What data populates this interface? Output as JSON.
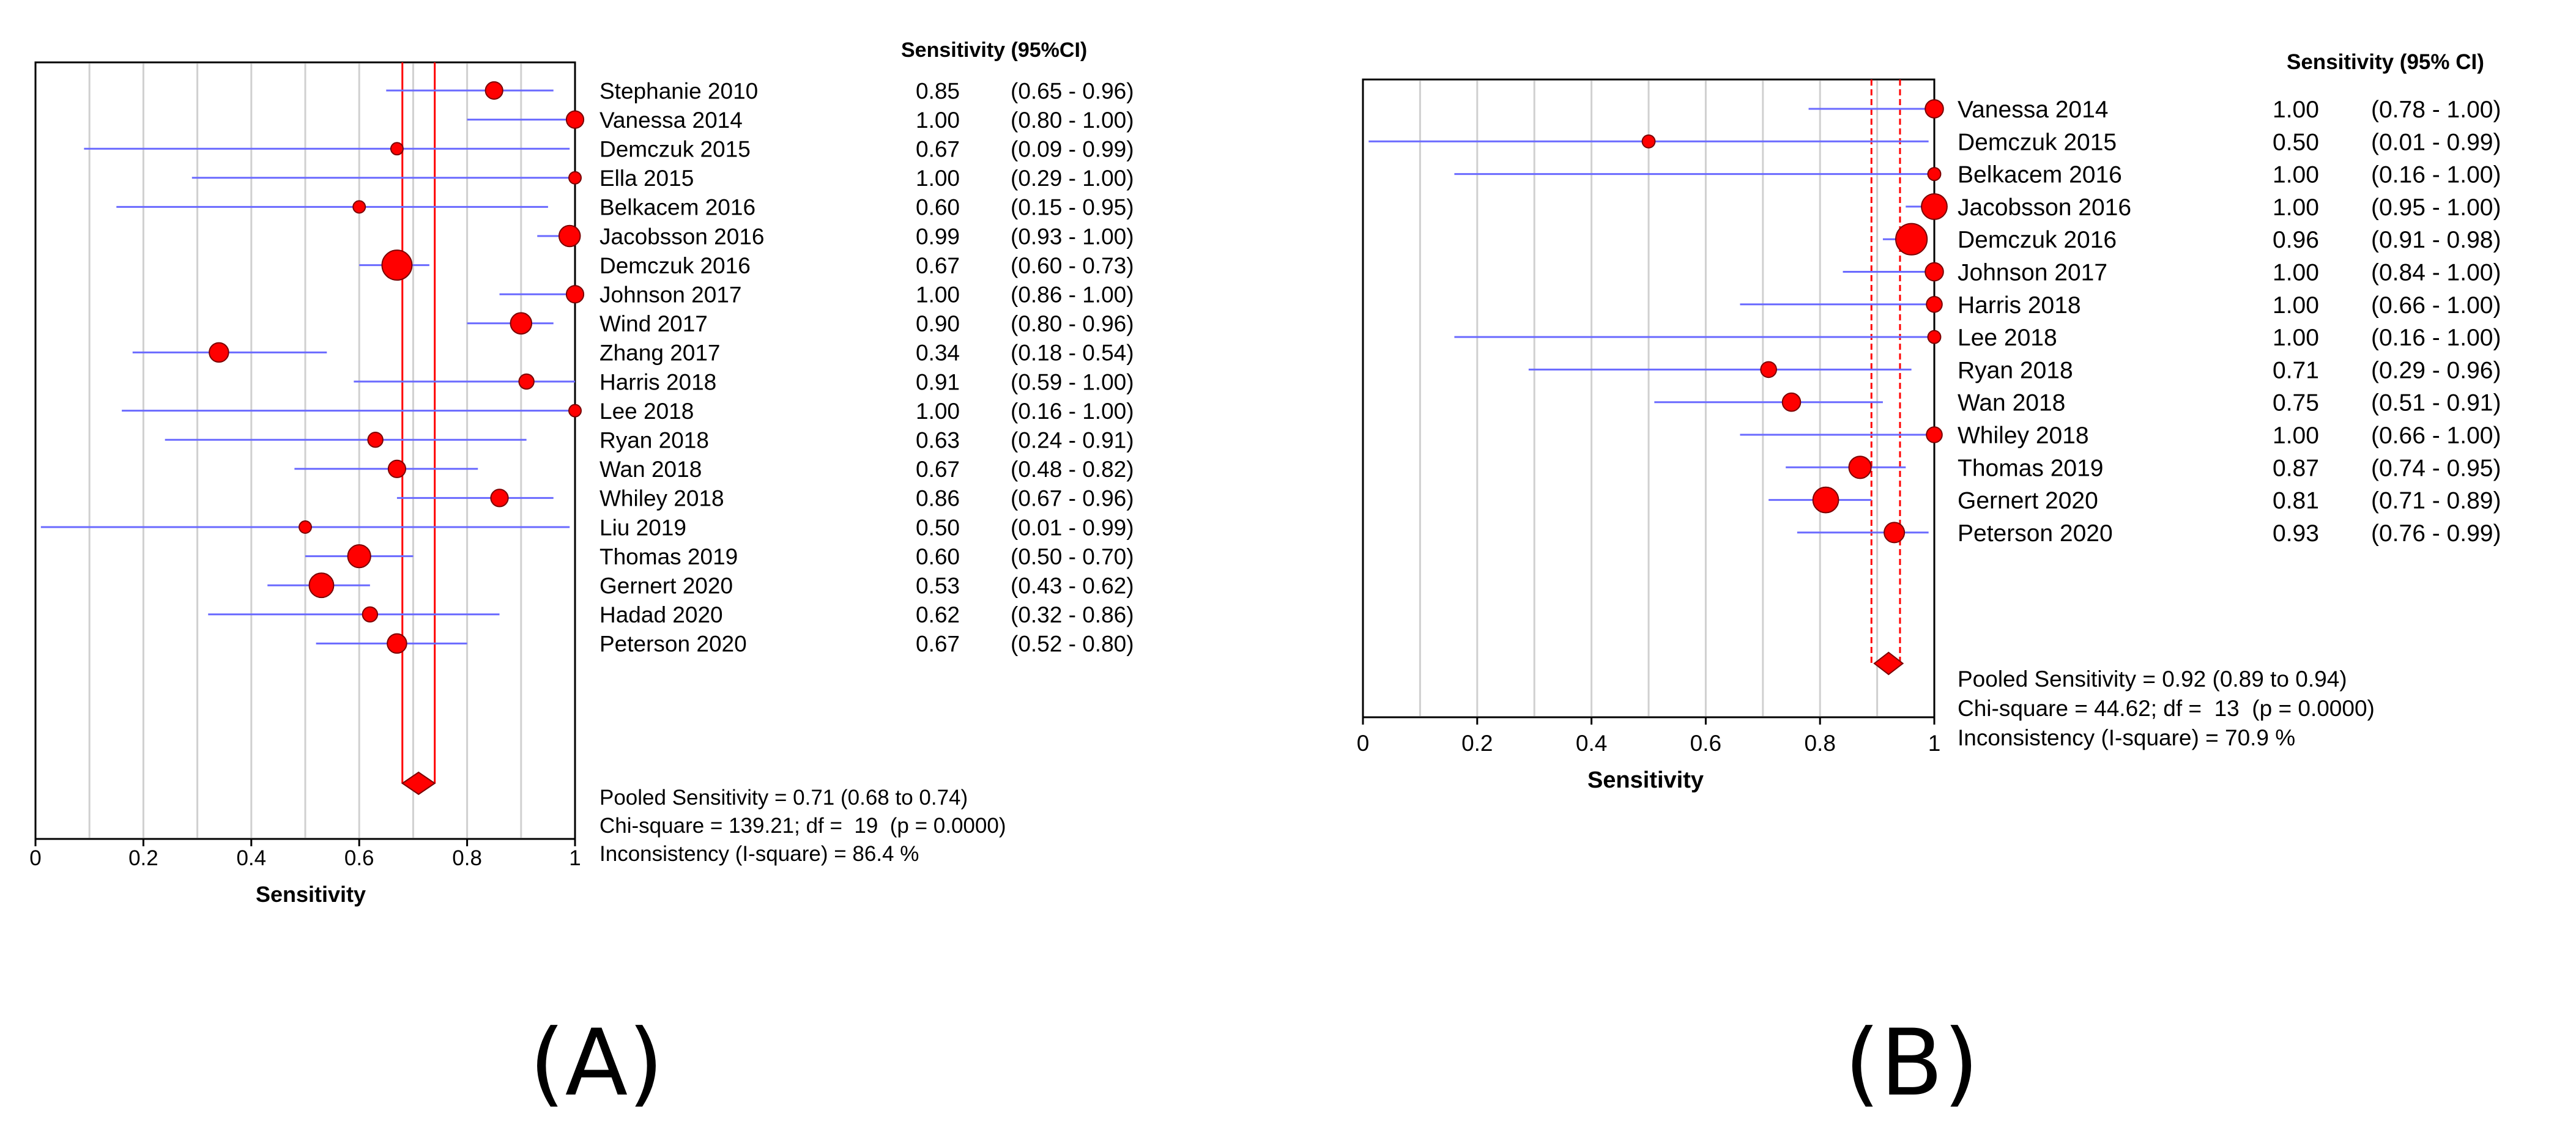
{
  "chart_data": [
    {
      "type": "forest",
      "panel_label": "(A)",
      "xlabel": "Sensitivity",
      "xlim": [
        0,
        1
      ],
      "x_ticks": [
        "0",
        "0.2",
        "0.4",
        "0.6",
        "0.8",
        "1"
      ],
      "column_header": "Sensitivity (95%CI)",
      "studies": [
        {
          "name": "Stephanie 2010",
          "estimate": 0.85,
          "lower": 0.65,
          "upper": 0.96,
          "value_text": "0.85",
          "ci_text": "(0.65 - 0.96)",
          "weight": 2
        },
        {
          "name": "Vanessa 2014",
          "estimate": 1.0,
          "lower": 0.8,
          "upper": 1.0,
          "value_text": "1.00",
          "ci_text": "(0.80 - 1.00)",
          "weight": 2
        },
        {
          "name": "Demczuk 2015",
          "estimate": 0.67,
          "lower": 0.09,
          "upper": 0.99,
          "value_text": "0.67",
          "ci_text": "(0.09 - 0.99)",
          "weight": 1
        },
        {
          "name": "Ella 2015",
          "estimate": 1.0,
          "lower": 0.29,
          "upper": 1.0,
          "value_text": "1.00",
          "ci_text": "(0.29 - 1.00)",
          "weight": 1
        },
        {
          "name": "Belkacem 2016",
          "estimate": 0.6,
          "lower": 0.15,
          "upper": 0.95,
          "value_text": "0.60",
          "ci_text": "(0.15 - 0.95)",
          "weight": 1
        },
        {
          "name": "Jacobsson 2016",
          "estimate": 0.99,
          "lower": 0.93,
          "upper": 1.0,
          "value_text": "0.99",
          "ci_text": "(0.93 - 1.00)",
          "weight": 3
        },
        {
          "name": "Demczuk 2016",
          "estimate": 0.67,
          "lower": 0.6,
          "upper": 0.73,
          "value_text": "0.67",
          "ci_text": "(0.60 - 0.73)",
          "weight": 6
        },
        {
          "name": "Johnson 2017",
          "estimate": 1.0,
          "lower": 0.86,
          "upper": 1.0,
          "value_text": "1.00",
          "ci_text": "(0.86 - 1.00)",
          "weight": 2
        },
        {
          "name": "Wind 2017",
          "estimate": 0.9,
          "lower": 0.8,
          "upper": 0.96,
          "value_text": "0.90",
          "ci_text": "(0.80 - 0.96)",
          "weight": 3
        },
        {
          "name": "Zhang 2017",
          "estimate": 0.34,
          "lower": 0.18,
          "upper": 0.54,
          "value_text": "0.34",
          "ci_text": "(0.18 - 0.54)",
          "weight": 2.5
        },
        {
          "name": "Harris 2018",
          "estimate": 0.91,
          "lower": 0.59,
          "upper": 1.0,
          "value_text": "0.91",
          "ci_text": "(0.59 - 1.00)",
          "weight": 1.5
        },
        {
          "name": "Lee 2018",
          "estimate": 1.0,
          "lower": 0.16,
          "upper": 1.0,
          "value_text": "1.00",
          "ci_text": "(0.16 - 1.00)",
          "weight": 1
        },
        {
          "name": "Ryan 2018",
          "estimate": 0.63,
          "lower": 0.24,
          "upper": 0.91,
          "value_text": "0.63",
          "ci_text": "(0.24 - 0.91)",
          "weight": 1.5
        },
        {
          "name": "Wan 2018",
          "estimate": 0.67,
          "lower": 0.48,
          "upper": 0.82,
          "value_text": "0.67",
          "ci_text": "(0.48 - 0.82)",
          "weight": 2
        },
        {
          "name": "Whiley 2018",
          "estimate": 0.86,
          "lower": 0.67,
          "upper": 0.96,
          "value_text": "0.86",
          "ci_text": "(0.67 - 0.96)",
          "weight": 2
        },
        {
          "name": "Liu 2019",
          "estimate": 0.5,
          "lower": 0.01,
          "upper": 0.99,
          "value_text": "0.50",
          "ci_text": "(0.01 - 0.99)",
          "weight": 1
        },
        {
          "name": "Thomas 2019",
          "estimate": 0.6,
          "lower": 0.5,
          "upper": 0.7,
          "value_text": "0.60",
          "ci_text": "(0.50 - 0.70)",
          "weight": 3.5
        },
        {
          "name": "Gernert 2020",
          "estimate": 0.53,
          "lower": 0.43,
          "upper": 0.62,
          "value_text": "0.53",
          "ci_text": "(0.43 - 0.62)",
          "weight": 4
        },
        {
          "name": "Hadad 2020",
          "estimate": 0.62,
          "lower": 0.32,
          "upper": 0.86,
          "value_text": "0.62",
          "ci_text": "(0.32 - 0.86)",
          "weight": 1.5
        },
        {
          "name": "Peterson 2020",
          "estimate": 0.67,
          "lower": 0.52,
          "upper": 0.8,
          "value_text": "0.67",
          "ci_text": "(0.52 - 0.80)",
          "weight": 2.5
        }
      ],
      "pooled": {
        "estimate": 0.71,
        "lower": 0.68,
        "upper": 0.74
      },
      "summary_lines": [
        "Pooled Sensitivity = 0.71 (0.68 to 0.74)",
        "Chi-square = 139.21; df =  19  (p = 0.0000)",
        "Inconsistency (I-square) = 86.4 %"
      ],
      "grid": true,
      "colors": {
        "marker": "#ff0000",
        "ci_line": "#6a6aff",
        "pooled_line": "#ff0000",
        "grid": "#d0d0d0"
      }
    },
    {
      "type": "forest",
      "panel_label": "(B)",
      "xlabel": "Sensitivity",
      "xlim": [
        0,
        1
      ],
      "x_ticks": [
        "0",
        "0.2",
        "0.4",
        "0.6",
        "0.8",
        "1"
      ],
      "column_header": "Sensitivity (95% CI)",
      "studies": [
        {
          "name": "Vanessa 2014",
          "estimate": 1.0,
          "lower": 0.78,
          "upper": 1.0,
          "value_text": "1.00",
          "ci_text": "(0.78 - 1.00)",
          "weight": 2
        },
        {
          "name": "Demczuk 2015",
          "estimate": 0.5,
          "lower": 0.01,
          "upper": 0.99,
          "value_text": "0.50",
          "ci_text": "(0.01 - 0.99)",
          "weight": 1
        },
        {
          "name": "Belkacem 2016",
          "estimate": 1.0,
          "lower": 0.16,
          "upper": 1.0,
          "value_text": "1.00",
          "ci_text": "(0.16 - 1.00)",
          "weight": 1
        },
        {
          "name": "Jacobsson 2016",
          "estimate": 1.0,
          "lower": 0.95,
          "upper": 1.0,
          "value_text": "1.00",
          "ci_text": "(0.95 - 1.00)",
          "weight": 4
        },
        {
          "name": "Demczuk 2016",
          "estimate": 0.96,
          "lower": 0.91,
          "upper": 0.98,
          "value_text": "0.96",
          "ci_text": "(0.91 - 0.98)",
          "weight": 6
        },
        {
          "name": "Johnson 2017",
          "estimate": 1.0,
          "lower": 0.84,
          "upper": 1.0,
          "value_text": "1.00",
          "ci_text": "(0.84 - 1.00)",
          "weight": 2
        },
        {
          "name": "Harris 2018",
          "estimate": 1.0,
          "lower": 0.66,
          "upper": 1.0,
          "value_text": "1.00",
          "ci_text": "(0.66 - 1.00)",
          "weight": 1.5
        },
        {
          "name": "Lee 2018",
          "estimate": 1.0,
          "lower": 0.16,
          "upper": 1.0,
          "value_text": "1.00",
          "ci_text": "(0.16 - 1.00)",
          "weight": 1
        },
        {
          "name": "Ryan 2018",
          "estimate": 0.71,
          "lower": 0.29,
          "upper": 0.96,
          "value_text": "0.71",
          "ci_text": "(0.29 - 0.96)",
          "weight": 1.5
        },
        {
          "name": "Wan 2018",
          "estimate": 0.75,
          "lower": 0.51,
          "upper": 0.91,
          "value_text": "0.75",
          "ci_text": "(0.51 - 0.91)",
          "weight": 2
        },
        {
          "name": "Whiley 2018",
          "estimate": 1.0,
          "lower": 0.66,
          "upper": 1.0,
          "value_text": "1.00",
          "ci_text": "(0.66 - 1.00)",
          "weight": 1.5
        },
        {
          "name": "Thomas 2019",
          "estimate": 0.87,
          "lower": 0.74,
          "upper": 0.95,
          "value_text": "0.87",
          "ci_text": "(0.74 - 0.95)",
          "weight": 3
        },
        {
          "name": "Gernert 2020",
          "estimate": 0.81,
          "lower": 0.71,
          "upper": 0.89,
          "value_text": "0.81",
          "ci_text": "(0.71 - 0.89)",
          "weight": 4
        },
        {
          "name": "Peterson 2020",
          "estimate": 0.93,
          "lower": 0.76,
          "upper": 0.99,
          "value_text": "0.93",
          "ci_text": "(0.76 - 0.99)",
          "weight": 2.5
        }
      ],
      "pooled": {
        "estimate": 0.92,
        "lower": 0.89,
        "upper": 0.94
      },
      "summary_lines": [
        "Pooled Sensitivity = 0.92 (0.89 to 0.94)",
        "Chi-square = 44.62; df =  13  (p = 0.0000)",
        "Inconsistency (I-square) = 70.9 %"
      ],
      "grid": true,
      "colors": {
        "marker": "#ff0000",
        "ci_line": "#6a6aff",
        "pooled_line": "#ff0000",
        "grid": "#d0d0d0"
      }
    }
  ]
}
